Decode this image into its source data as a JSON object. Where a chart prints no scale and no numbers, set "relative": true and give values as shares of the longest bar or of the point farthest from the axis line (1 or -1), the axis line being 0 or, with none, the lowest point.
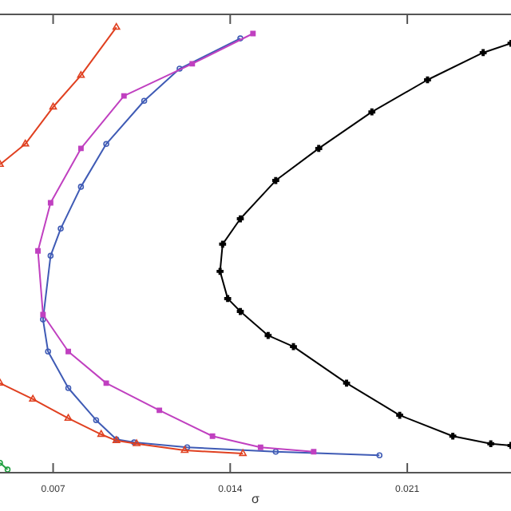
{
  "chart_data": {
    "type": "line",
    "xlabel": "σ",
    "relative": true,
    "xlim": [
      0.0049,
      0.0251
    ],
    "xticks": [
      0.007,
      0.014,
      0.021
    ],
    "grid": false,
    "line_style": "solid",
    "series": [
      {
        "color": "#000000",
        "marker": "cross",
        "x": [
          0.0251,
          0.024,
          0.0218,
          0.0196,
          0.0175,
          0.0158,
          0.0144,
          0.0137,
          0.0136,
          0.0139,
          0.0144,
          0.0155,
          0.0165,
          0.0186,
          0.0207,
          0.0228,
          0.0243,
          0.0251
        ],
        "values": [
          0.964,
          0.943,
          0.882,
          0.81,
          0.728,
          0.656,
          0.57,
          0.513,
          0.452,
          0.391,
          0.362,
          0.308,
          0.283,
          0.201,
          0.129,
          0.082,
          0.065,
          0.061
        ]
      },
      {
        "color": "#3f5bb5",
        "marker": "circle",
        "x": [
          0.0144,
          0.012,
          0.0106,
          0.0091,
          0.0081,
          0.0073,
          0.0069,
          0.0066,
          0.0068,
          0.0076,
          0.0087,
          0.0095,
          0.0102,
          0.0123,
          0.0158,
          0.0199
        ],
        "values": [
          0.975,
          0.907,
          0.835,
          0.738,
          0.642,
          0.548,
          0.487,
          0.344,
          0.272,
          0.19,
          0.118,
          0.075,
          0.068,
          0.057,
          0.047,
          0.039
        ]
      },
      {
        "color": "#c040c0",
        "marker": "square",
        "x": [
          0.0149,
          0.0125,
          0.0098,
          0.0081,
          0.0069,
          0.0064,
          0.0066,
          0.0076,
          0.0091,
          0.0112,
          0.0133,
          0.0152,
          0.0173
        ],
        "values": [
          0.986,
          0.918,
          0.846,
          0.728,
          0.606,
          0.498,
          0.355,
          0.272,
          0.201,
          0.14,
          0.082,
          0.057,
          0.047
        ]
      },
      {
        "color": "#e04020",
        "marker": "triangle",
        "x": [
          0.0049,
          0.0059,
          0.007,
          0.0081,
          0.0095
        ],
        "values": [
          0.692,
          0.738,
          0.821,
          0.892,
          1
        ]
      },
      {
        "color": "#e04020",
        "marker": "triangle",
        "x": [
          0.0049,
          0.0062,
          0.0076,
          0.0089,
          0.0095,
          0.0103,
          0.0122,
          0.0145
        ],
        "values": [
          0.201,
          0.165,
          0.122,
          0.086,
          0.072,
          0.065,
          0.05,
          0.043
        ]
      },
      {
        "color": "#20a040",
        "marker": "circle",
        "x": [
          0.0049,
          0.0052
        ],
        "values": [
          0.022,
          0.007
        ]
      }
    ]
  }
}
